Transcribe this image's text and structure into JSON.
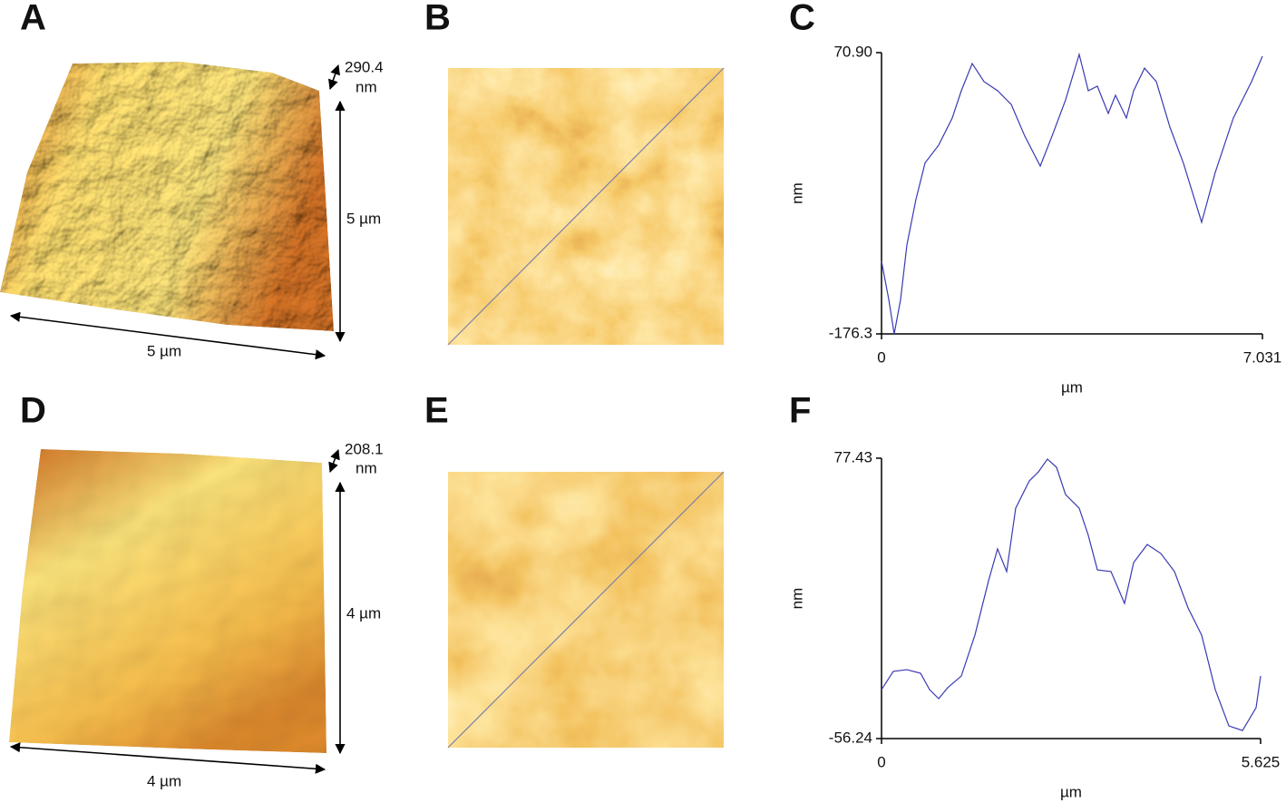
{
  "figure": {
    "panel_labels": [
      "A",
      "B",
      "C",
      "D",
      "E",
      "F"
    ],
    "surface_3d": [
      {
        "height": "290.4",
        "height_unit": "nm",
        "y_size": "5 µm",
        "x_size": "5 µm"
      },
      {
        "height": "208.1",
        "height_unit": "nm",
        "y_size": "4 µm",
        "x_size": "4 µm"
      }
    ]
  },
  "chart_data": [
    {
      "type": "line",
      "xlabel": "µm",
      "ylabel": "nm",
      "x": [
        0,
        0.134,
        0.234,
        0.352,
        0.469,
        0.636,
        0.804,
        1.055,
        1.306,
        1.473,
        1.674,
        1.892,
        2.143,
        2.394,
        2.645,
        2.93,
        3.147,
        3.398,
        3.649,
        3.817,
        3.984,
        4.185,
        4.319,
        4.52,
        4.654,
        4.855,
        5.072,
        5.323,
        5.574,
        5.909,
        6.16,
        6.495,
        6.83,
        7.031
      ],
      "series": [
        {
          "color": "#3a3ab4",
          "values": [
            -112.5,
            -146,
            -176.3,
            -146,
            -98,
            -58,
            -26,
            -10.4,
            13.5,
            37.4,
            61.3,
            45.4,
            37.4,
            25.4,
            -2.5,
            -28.8,
            -2.5,
            29.4,
            69.3,
            37.4,
            41.4,
            17.5,
            33.4,
            13.5,
            37.4,
            57.3,
            45.4,
            5.5,
            -26.4,
            -78.2,
            -34.4,
            13.5,
            45.4,
            67.7
          ]
        }
      ],
      "xlim": [
        0,
        7.031
      ],
      "ylim": [
        -176.3,
        70.9
      ],
      "xticks": [
        0,
        7.031
      ],
      "yticks": [
        -176.3,
        {
          "value": 70.9,
          "label": "70.90"
        }
      ]
    },
    {
      "type": "line",
      "xlabel": "µm",
      "ylabel": "nm",
      "x": [
        0,
        0.175,
        0.377,
        0.579,
        0.713,
        0.848,
        0.982,
        1.184,
        1.386,
        1.588,
        1.722,
        1.857,
        1.991,
        2.193,
        2.328,
        2.462,
        2.597,
        2.731,
        2.933,
        3.068,
        3.203,
        3.405,
        3.606,
        3.741,
        3.943,
        4.145,
        4.347,
        4.548,
        4.75,
        4.952,
        5.154,
        5.356,
        5.558,
        5.625
      ],
      "series": [
        {
          "color": "#3a3ab4",
          "values": [
            -32.9,
            -24.2,
            -23.4,
            -25.1,
            -32.9,
            -37.2,
            -32,
            -26.4,
            -6.9,
            19.0,
            34.2,
            23.4,
            53.6,
            66.6,
            70.9,
            77.0,
            73.1,
            60.1,
            53.6,
            40.7,
            24.2,
            23.4,
            8.2,
            27.7,
            36.3,
            32.0,
            23.4,
            6.1,
            -6.9,
            -32.9,
            -50.2,
            -52.4,
            -41.5,
            -26.4
          ]
        }
      ],
      "xlim": [
        0,
        5.625
      ],
      "ylim": [
        -56.24,
        77.43
      ],
      "xticks": [
        0,
        5.625
      ],
      "yticks": [
        -56.24,
        77.43
      ]
    }
  ]
}
